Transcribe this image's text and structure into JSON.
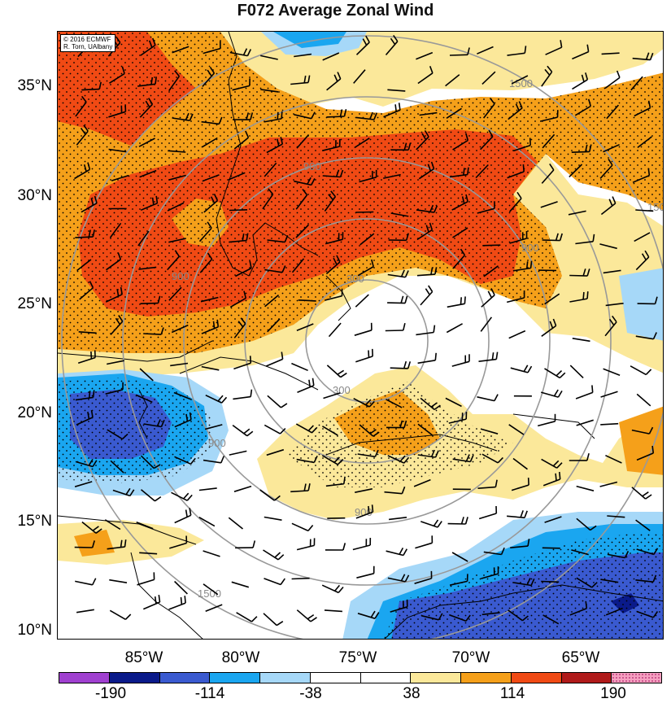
{
  "title": "F072 Average Zonal Wind",
  "credit": {
    "line1": "© 2016 ECMWF",
    "line2": "R. Torn, UAlbany"
  },
  "latitude_labels": [
    "35°N",
    "30°N",
    "25°N",
    "20°N",
    "15°N",
    "10°N"
  ],
  "longitude_labels": [
    "85°W",
    "80°W",
    "75°W",
    "70°W",
    "65°W"
  ],
  "range_ring_labels": [
    "300",
    "300",
    "900",
    "900",
    "900",
    "900",
    "900",
    "1500",
    "1500",
    "1500"
  ],
  "colorbar": {
    "colors": [
      "#a040d0",
      "#0a1a8a",
      "#3a5ad0",
      "#1aa6f0",
      "#a6d8f8",
      "#ffffff",
      "#ffffff",
      "#fbe89a",
      "#f5a01a",
      "#f04a14",
      "#b01a1a",
      "#f5a0c0"
    ],
    "labels": [
      "-190",
      "-114",
      "-38",
      "38",
      "114",
      "190"
    ]
  },
  "field_colors": {
    "red": "#f04a14",
    "orange": "#f5a01a",
    "yellow": "#fbe89a",
    "light_blue": "#a6d8f8",
    "blue": "#1aa6f0",
    "dark_blue": "#3a5ad0",
    "navy": "#0a1a8a"
  }
}
